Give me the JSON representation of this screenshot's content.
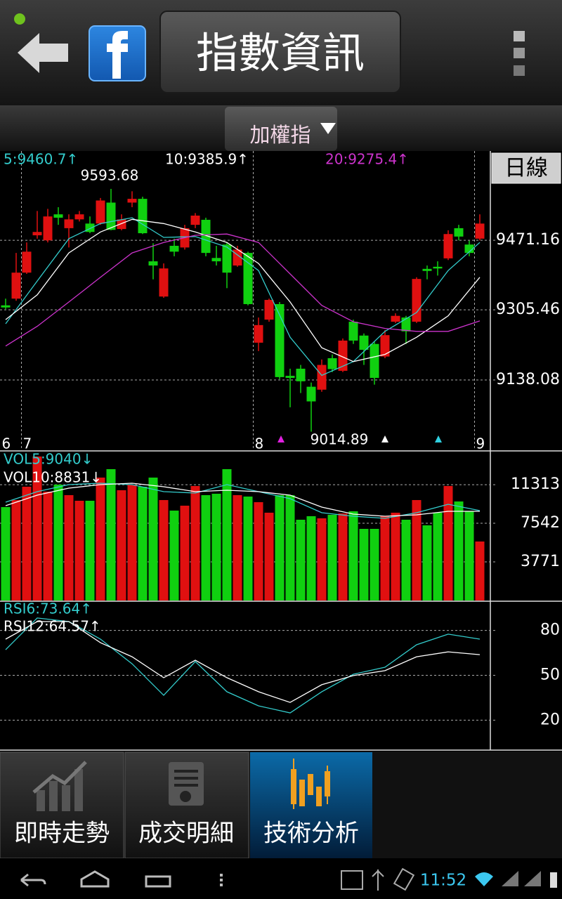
{
  "header": {
    "title": "指數資訊",
    "dropdown": "加權指",
    "period_button": "日線"
  },
  "chart_data": [
    {
      "type": "candlestick",
      "categories": [
        "6",
        null,
        "7",
        null,
        null,
        null,
        null,
        null,
        null,
        null,
        null,
        null,
        null,
        null,
        null,
        null,
        null,
        null,
        null,
        null,
        null,
        null,
        null,
        null,
        "8",
        null,
        null,
        null,
        null,
        null,
        null,
        null,
        null,
        null,
        null,
        null,
        null,
        null,
        null,
        null,
        null,
        null,
        null,
        null,
        null,
        "9"
      ],
      "open": [
        9316,
        9332,
        9394,
        9483,
        9471,
        9533,
        9500,
        9521,
        9511,
        9511,
        9561,
        9498,
        9561,
        9570,
        9421,
        9337,
        9458,
        9454,
        9508,
        9520,
        9429,
        9461,
        9411,
        9441,
        9227,
        9282,
        9319,
        9148,
        9165,
        9122,
        9115,
        9190,
        9160,
        9277,
        9244,
        9224,
        9194,
        9277,
        9287,
        9277,
        9403,
        9408,
        9428,
        9500,
        9461,
        9475
      ],
      "high": [
        9332,
        9441,
        9466,
        9541,
        9546,
        9550,
        9533,
        9541,
        9528,
        9572,
        9593.68,
        9533,
        9588,
        9575,
        9464,
        9416,
        9475,
        9508,
        9536,
        9525,
        9458,
        9466,
        9458,
        9444,
        9287,
        9332,
        9324,
        9165,
        9174,
        9132,
        9187,
        9199,
        9237,
        9282,
        9249,
        9229,
        9257,
        9297,
        9291,
        9383,
        9411,
        9421,
        9495,
        9508,
        9470,
        9533
      ],
      "low": [
        9307,
        9327,
        9391,
        9475,
        9466,
        9508,
        9454,
        9516,
        9488,
        9508,
        9495,
        9495,
        9550,
        9486,
        9378,
        9334,
        9433,
        9449,
        9500,
        9433,
        9411,
        9357,
        9408,
        9316,
        9207,
        9277,
        9140,
        9073,
        9107,
        9014.89,
        9110,
        9157,
        9157,
        9224,
        9174,
        9127,
        9190,
        9274,
        9224,
        9274,
        9378,
        9387,
        9424,
        9471,
        9433,
        9471
      ],
      "close": [
        9311,
        9394,
        9444,
        9491,
        9528,
        9525,
        9521,
        9533,
        9491,
        9566,
        9496,
        9521,
        9570,
        9488,
        9411,
        9404,
        9444,
        9500,
        9530,
        9441,
        9421,
        9394,
        9449,
        9319,
        9269,
        9329,
        9145,
        9143,
        9135,
        9087,
        9174,
        9164,
        9232,
        9232,
        9210,
        9143,
        9245,
        9291,
        9254,
        9379,
        9398,
        9404,
        9486,
        9480,
        9441,
        9511
      ],
      "up_color": "#e01010",
      "down_color": "#10d010",
      "high_label": "9593.68",
      "low_label": "9014.89",
      "series": [
        {
          "name": "5:9460.7↑",
          "color": "#33cccc",
          "x": [
            0,
            3,
            6,
            9,
            12,
            15,
            18,
            21,
            24,
            27,
            30,
            33,
            36,
            39,
            42,
            45
          ],
          "values": [
            9272,
            9374,
            9475,
            9511,
            9525,
            9478,
            9480,
            9455,
            9399,
            9240,
            9149,
            9182,
            9254,
            9299,
            9399,
            9466
          ]
        },
        {
          "name": "10:9385.9↑",
          "color": "#ffffff",
          "x": [
            0,
            3,
            6,
            9,
            12,
            15,
            18,
            21,
            24,
            27,
            30,
            33,
            36,
            39,
            42,
            45
          ],
          "values": [
            9282,
            9341,
            9441,
            9491,
            9521,
            9511,
            9491,
            9466,
            9416,
            9324,
            9215,
            9182,
            9199,
            9240,
            9291,
            9383
          ]
        },
        {
          "name": "20:9275.4↑",
          "color": "#cc33cc",
          "x": [
            0,
            3,
            6,
            9,
            12,
            15,
            18,
            21,
            24,
            27,
            30,
            33,
            36,
            39,
            42,
            45
          ],
          "values": [
            9219,
            9266,
            9324,
            9383,
            9441,
            9466,
            9483,
            9486,
            9466,
            9391,
            9316,
            9277,
            9261,
            9254,
            9254,
            9279
          ]
        }
      ],
      "ylim": [
        8969,
        9684
      ],
      "yticks": [
        9138.08,
        9305.46,
        9471.16
      ],
      "grid": true
    },
    {
      "type": "bar",
      "values": [
        9124,
        9810,
        11113,
        14063,
        10633,
        11319,
        10290,
        9741,
        9741,
        12005,
        12828,
        10770,
        11319,
        11113,
        12005,
        9810,
        8781,
        9261,
        11182,
        10290,
        10427,
        12828,
        10290,
        10153,
        9604,
        8575,
        10290,
        10290,
        7889,
        8232,
        8026,
        8369,
        8506,
        8712,
        6997,
        6997,
        8232,
        8575,
        7889,
        9810,
        7340,
        8575,
        11182,
        9673,
        8712,
        5762
      ],
      "series": [
        {
          "name": "VOL5:9040↓",
          "color": "#33cccc",
          "x": [
            0,
            3,
            6,
            9,
            12,
            15,
            18,
            21,
            24,
            27,
            30,
            33,
            36,
            39,
            42,
            45
          ],
          "values": [
            9604,
            10633,
            11319,
            11456,
            11319,
            10633,
            10496,
            11319,
            10633,
            9947,
            8575,
            8232,
            8026,
            8575,
            9398,
            8781
          ]
        },
        {
          "name": "VOL10:8831↓",
          "color": "#ffffff",
          "x": [
            0,
            3,
            6,
            9,
            12,
            15,
            18,
            21,
            24,
            27,
            30,
            33,
            36,
            39,
            42,
            45
          ],
          "values": [
            9261,
            10290,
            10976,
            11319,
            11456,
            11113,
            10633,
            10770,
            10633,
            10290,
            9124,
            8438,
            8232,
            8369,
            8712,
            8712
          ]
        }
      ],
      "ylim": [
        0,
        14610
      ],
      "yticks": [
        3771,
        7542,
        11313
      ],
      "grid": true
    },
    {
      "type": "line",
      "series": [
        {
          "name": "RSI6:73.64↑",
          "color": "#33cccc",
          "x": [
            0,
            3,
            6,
            9,
            12,
            15,
            18,
            21,
            24,
            27,
            30,
            33,
            36,
            39,
            42,
            45
          ],
          "values": [
            67.1,
            88.3,
            85.9,
            74.2,
            57.7,
            36.6,
            59.2,
            39.0,
            29.6,
            24.9,
            39.0,
            50.7,
            55.4,
            70.4,
            77.5,
            74.2
          ]
        },
        {
          "name": "RSI12:64.57↑",
          "color": "#ffffff",
          "x": [
            0,
            3,
            6,
            9,
            12,
            15,
            18,
            21,
            24,
            27,
            30,
            33,
            36,
            39,
            42,
            45
          ],
          "values": [
            74.2,
            85.9,
            85.9,
            71.8,
            62.4,
            48.4,
            60.1,
            48.4,
            39.0,
            31.9,
            43.7,
            49.8,
            53.1,
            62.4,
            65.7,
            63.8
          ]
        }
      ],
      "ylim": [
        0,
        100
      ],
      "yticks": [
        20,
        50,
        80
      ],
      "grid": true
    }
  ],
  "tabs": [
    "即時走勢",
    "成交明細",
    "技術分析"
  ],
  "status_bar": {
    "time": "11:52"
  }
}
